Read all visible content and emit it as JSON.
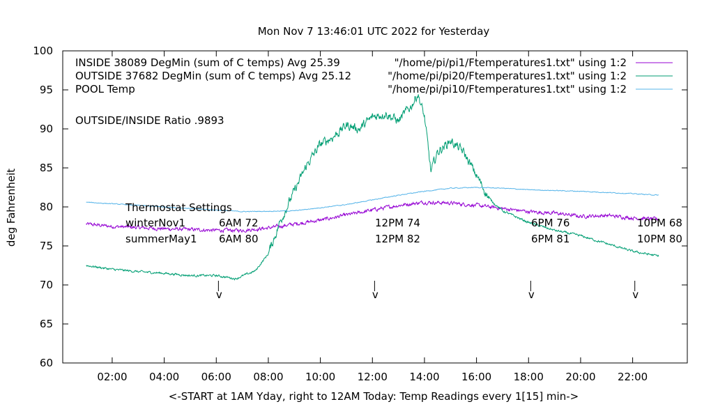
{
  "chart_data": {
    "type": "line",
    "title": "Mon Nov  7 13:46:01 UTC 2022 for Yesterday",
    "xlabel": "<-START at 1AM Yday, right to 12AM Today:  Temp Readings every 1[15] min->",
    "ylabel": "deg Fahrenheit",
    "xlim": [
      "01:00",
      "24:00"
    ],
    "ylim": [
      60,
      100
    ],
    "x_ticks": [
      "02:00",
      "04:00",
      "06:00",
      "08:00",
      "10:00",
      "12:00",
      "14:00",
      "16:00",
      "18:00",
      "20:00",
      "22:00"
    ],
    "y_ticks": [
      60,
      65,
      70,
      75,
      80,
      85,
      90,
      95,
      100
    ],
    "grid": false,
    "legend_position": "top-right",
    "series": [
      {
        "name": "INSIDE 38089 DegMin (sum of C temps) Avg 25.39",
        "source": "\"/home/pi/pi1/Ftemperatures1.txt\" using 1:2",
        "color": "#9400d3",
        "x": [
          "01:00",
          "02:00",
          "04:00",
          "06:00",
          "07:00",
          "08:00",
          "10:00",
          "12:00",
          "13:00",
          "14:00",
          "15:00",
          "16:00",
          "17:00",
          "18:00",
          "19:00",
          "20:00",
          "21:00",
          "22:00",
          "23:00"
        ],
        "values": [
          77.8,
          77.5,
          77.2,
          77.0,
          77.0,
          77.3,
          78.3,
          79.6,
          80.2,
          80.6,
          80.5,
          80.2,
          79.8,
          79.4,
          79.2,
          78.8,
          78.9,
          78.6,
          78.4
        ]
      },
      {
        "name": "OUTSIDE 37682 DegMin (sum of C temps) Avg 25.12",
        "source": "\"/home/pi/pi20/Ftemperatures1.txt\" using 1:2",
        "color": "#009e73",
        "x": [
          "01:00",
          "02:00",
          "03:00",
          "04:00",
          "05:00",
          "06:00",
          "06:45",
          "07:30",
          "08:00",
          "08:30",
          "09:00",
          "09:30",
          "10:00",
          "10:30",
          "11:00",
          "11:30",
          "12:00",
          "12:30",
          "13:00",
          "13:30",
          "13:45",
          "14:00",
          "14:15",
          "14:30",
          "15:00",
          "15:30",
          "16:00",
          "16:30",
          "17:00",
          "18:00",
          "19:00",
          "20:00",
          "21:00",
          "22:00",
          "23:00"
        ],
        "values": [
          72.5,
          72.0,
          71.7,
          71.5,
          71.2,
          71.2,
          70.8,
          71.8,
          74.0,
          78.5,
          82.0,
          85.5,
          88.0,
          89.0,
          90.5,
          90.0,
          91.5,
          92.0,
          91.0,
          93.0,
          94.5,
          91.5,
          84.5,
          87.0,
          88.5,
          87.0,
          84.0,
          81.0,
          79.5,
          78.0,
          77.0,
          76.3,
          75.3,
          74.3,
          73.7
        ]
      },
      {
        "name": "POOL Temp",
        "source": "\"/home/pi/pi10/Ftemperatures1.txt\" using 1:2",
        "color": "#56b4e9",
        "x": [
          "01:00",
          "03:00",
          "05:00",
          "07:00",
          "09:00",
          "11:00",
          "13:00",
          "14:00",
          "15:00",
          "16:00",
          "17:00",
          "18:00",
          "20:00",
          "22:00",
          "23:00"
        ],
        "values": [
          80.6,
          80.2,
          79.8,
          79.4,
          79.5,
          80.3,
          81.5,
          82.0,
          82.4,
          82.5,
          82.4,
          82.2,
          82.0,
          81.7,
          81.5
        ]
      }
    ],
    "annotations": [
      {
        "text": "OUTSIDE/INSIDE Ratio .9893"
      },
      {
        "text": "Thermostat Settings"
      },
      {
        "text": "winterNov1"
      },
      {
        "text": "summerMay1"
      },
      {
        "text": "6AM 72"
      },
      {
        "text": "6AM 80"
      },
      {
        "text": "12PM 74"
      },
      {
        "text": "12PM 82"
      },
      {
        "text": "6PM 76"
      },
      {
        "text": "6PM 81"
      },
      {
        "text": "10PM 68"
      },
      {
        "text": "10PM 80"
      }
    ],
    "arrows": [
      {
        "x": "06:05",
        "label": "v"
      },
      {
        "x": "12:05",
        "label": "v"
      },
      {
        "x": "18:05",
        "label": "v"
      },
      {
        "x": "22:05",
        "label": "v"
      }
    ]
  }
}
